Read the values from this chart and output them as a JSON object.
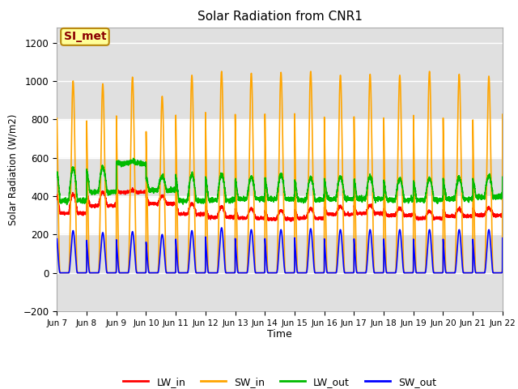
{
  "title": "Solar Radiation from CNR1",
  "xlabel": "Time",
  "ylabel": "Solar Radiation (W/m2)",
  "ylim": [
    -200,
    1280
  ],
  "yticks": [
    -200,
    0,
    200,
    400,
    600,
    800,
    1000,
    1200
  ],
  "x_tick_labels": [
    "Jun 7",
    "Jun 8",
    "Jun 9",
    "Jun 10",
    "Jun 11",
    "Jun 12",
    "Jun 13",
    "Jun 14",
    "Jun 15",
    "Jun 16",
    "Jun 17",
    "Jun 18",
    "Jun 19",
    "Jun 20",
    "Jun 21",
    "Jun 22"
  ],
  "colors": {
    "LW_in": "#ff0000",
    "SW_in": "#ffa500",
    "LW_out": "#00bb00",
    "SW_out": "#0000ff"
  },
  "annotation_text": "SI_met",
  "annotation_color": "#8b0000",
  "annotation_bg": "#ffff99",
  "annotation_edge": "#b8860b",
  "bg_band_color": "#e0e0e0",
  "line_width": 1.2,
  "n_days": 15,
  "points_per_day": 288,
  "sw_in_peaks": [
    1000,
    985,
    1020,
    920,
    1030,
    1050,
    1040,
    1045,
    1050,
    1030,
    1035,
    1030,
    1050,
    1035,
    1025
  ],
  "sw_out_peaks": [
    220,
    210,
    215,
    200,
    220,
    235,
    225,
    225,
    230,
    225,
    225,
    225,
    225,
    225,
    225
  ],
  "lw_in_base": [
    310,
    350,
    420,
    360,
    305,
    290,
    285,
    280,
    285,
    305,
    310,
    300,
    285,
    295,
    300
  ],
  "lw_in_amp": [
    100,
    70,
    10,
    40,
    55,
    55,
    50,
    45,
    50,
    40,
    40,
    35,
    35,
    38,
    38
  ],
  "lw_out_base": [
    375,
    420,
    570,
    430,
    375,
    380,
    385,
    385,
    380,
    385,
    385,
    380,
    380,
    385,
    395
  ],
  "lw_out_amp": [
    170,
    130,
    10,
    70,
    140,
    135,
    115,
    125,
    115,
    115,
    115,
    110,
    110,
    110,
    110
  ],
  "day_start": 0.25,
  "day_end": 0.835,
  "bell_power_sw": 2.0,
  "bell_power_lw": 1.0,
  "legend_labels": [
    "LW_in",
    "SW_in",
    "LW_out",
    "SW_out"
  ]
}
